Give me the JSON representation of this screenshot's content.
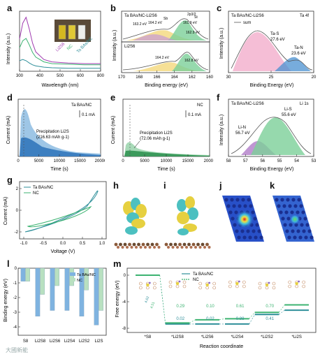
{
  "panel_labels": [
    "a",
    "b",
    "c",
    "d",
    "e",
    "f",
    "g",
    "h",
    "i",
    "j",
    "k",
    "l",
    "m"
  ],
  "watermark": "大國新能",
  "colors": {
    "teal": "#2f8f9a",
    "green": "#3cb371",
    "purple": "#a03cb0",
    "blue": "#3a7fc4",
    "lightblue": "#7fb3e0",
    "pink": "#e8a0c8",
    "yellow": "#e6c44a",
    "olive": "#b8a85c"
  },
  "chart_data": [
    {
      "id": "a",
      "type": "line",
      "xlabel": "Wavelength (nm)",
      "ylabel": "Intensity (a.u.)",
      "xticks": [
        "300",
        "400",
        "500",
        "600",
        "800"
      ],
      "xlim": [
        300,
        800
      ],
      "series": [
        {
          "name": "Li2S6",
          "x": [
            300,
            320,
            340,
            360,
            380,
            400,
            450,
            500,
            600,
            700,
            800
          ],
          "y": [
            0.55,
            0.82,
            0.92,
            0.72,
            0.48,
            0.33,
            0.2,
            0.16,
            0.14,
            0.13,
            0.13
          ]
        },
        {
          "name": "NC",
          "x": [
            300,
            320,
            340,
            360,
            380,
            400,
            450,
            500,
            600,
            700,
            800
          ],
          "y": [
            0.4,
            0.52,
            0.56,
            0.45,
            0.32,
            0.24,
            0.16,
            0.13,
            0.12,
            0.11,
            0.11
          ]
        },
        {
          "name": "Ta BAs/NC",
          "x": [
            300,
            320,
            340,
            360,
            380,
            400,
            450,
            500,
            600,
            700,
            800
          ],
          "y": [
            0.18,
            0.2,
            0.18,
            0.14,
            0.11,
            0.09,
            0.07,
            0.06,
            0.05,
            0.05,
            0.05
          ]
        }
      ]
    },
    {
      "id": "b",
      "type": "line",
      "xlabel": "Binding energy (eV)",
      "ylabel": "Intensity (a.u.)",
      "xticks": [
        "170",
        "168",
        "166",
        "164",
        "162",
        "160"
      ],
      "labels": {
        "top_sample": "Ta BAs/NC-Li2S6",
        "bottom_sample": "Li2S6",
        "sp3": "2p3/2",
        "sb": "Sb",
        "st": "St"
      },
      "peaks_top": [
        "161.9 eV",
        "163.2 eV",
        "164.2 eV",
        "162.9 eV"
      ],
      "peaks_bottom": [
        "164.2 eV",
        "162.8 eV"
      ]
    },
    {
      "id": "c",
      "type": "line",
      "xlabel": "Binding Energy (eV)",
      "ylabel": "Intensity (a.u.)",
      "xticks": [
        "30",
        "25",
        "20"
      ],
      "title_left": "Ta BAs/NC-Li2S6",
      "title_right": "Ta 4f",
      "legend": "sum",
      "peaks": [
        {
          "label": "Ta-S",
          "value": "27.6 eV"
        },
        {
          "label": "Ta-N",
          "value": "23.6 eV"
        }
      ]
    },
    {
      "id": "d",
      "type": "area",
      "xlabel": "Time (s)",
      "ylabel": "Current (mA)",
      "xticks": [
        "0",
        "5000",
        "10000",
        "15000",
        "20000"
      ],
      "xlim": [
        0,
        20000
      ],
      "label": "Ta BAs/NC",
      "scale": "0.1 mA",
      "annotation": "Precipitation Li2S",
      "capacity": "(216.63 mAh g-1)"
    },
    {
      "id": "e",
      "type": "area",
      "xlabel": "Time (s)",
      "ylabel": "Current (mA)",
      "xticks": [
        "0",
        "5000",
        "10000",
        "15000",
        "20000"
      ],
      "xlim": [
        0,
        20000
      ],
      "label": "NC",
      "scale": "0.1 mA",
      "annotation": "Precipitation Li2S",
      "capacity": "(72.06 mAh g-1)"
    },
    {
      "id": "f",
      "type": "line",
      "xlabel": "Binding Energy (eV)",
      "ylabel": "Intensity (a.u.)",
      "xticks": [
        "58",
        "57",
        "56",
        "55",
        "54",
        "53"
      ],
      "title_left": "Ta BAs/NC-Li2S6",
      "title_right": "Li 1s",
      "peaks": [
        {
          "label": "Li-S",
          "value": "55.6 eV"
        },
        {
          "label": "Li-N",
          "value": "56.7 eV"
        }
      ]
    },
    {
      "id": "g",
      "type": "line",
      "xlabel": "Voltage (V)",
      "ylabel": "Current (mA)",
      "xticks": [
        "-1.0",
        "-0.5",
        "0.0",
        "0.5",
        "1.0"
      ],
      "xlim": [
        -1.1,
        1.1
      ],
      "yticks": [
        "2",
        "0",
        "-2"
      ],
      "legend": [
        "Ta BAs/NC",
        "NC"
      ]
    },
    {
      "id": "l",
      "type": "bar",
      "ylabel": "Binding energy (eV)",
      "categories": [
        "S8",
        "Li2S8",
        "Li2S6",
        "Li2S4",
        "Li2S2",
        "Li2S"
      ],
      "series": [
        {
          "name": "Ta BAs/NC",
          "values": [
            -0.9,
            -3.3,
            -2.9,
            -2.9,
            -3.3,
            -3.9
          ]
        },
        {
          "name": "NC",
          "values": [
            -0.9,
            -1.8,
            -1.2,
            -1.2,
            -1.5,
            -2.9
          ]
        }
      ],
      "yticks": [
        "0",
        "-1",
        "-2",
        "-3",
        "-4"
      ],
      "ylim": [
        0,
        -4.6
      ]
    },
    {
      "id": "m",
      "type": "line",
      "xlabel": "Reaction coordinate",
      "ylabel": "Free energy (eV)",
      "categories": [
        "*S8",
        "*Li2S8",
        "*Li2S6",
        "*Li2S4",
        "*Li2S2",
        "*Li2S"
      ],
      "yticks": [
        "0",
        "-4",
        "-8"
      ],
      "legend": [
        "Ta BAs/NC",
        "NC"
      ],
      "steps_ta": [
        "0.02",
        "0.02",
        "0.88",
        "0.41"
      ],
      "steps_nc": [
        "0.29",
        "0.10",
        "0.61",
        "0.70"
      ],
      "first_step": [
        "4.62",
        "4.51"
      ],
      "series": [
        {
          "name": "Ta BAs/NC",
          "values": [
            0,
            -4.6,
            -4.6,
            -4.6,
            -3.7,
            -3.3
          ]
        },
        {
          "name": "NC",
          "values": [
            0,
            -4.5,
            -4.2,
            -4.1,
            -3.5,
            -2.8
          ]
        }
      ]
    }
  ]
}
